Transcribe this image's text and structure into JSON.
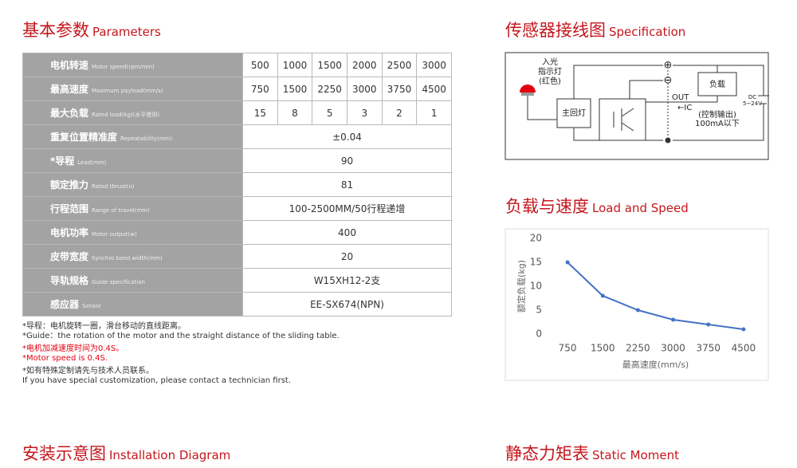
{
  "sections": {
    "parameters": {
      "title_cn": "基本参数",
      "title_en": "Parameters"
    },
    "specification": {
      "title_cn": "传感器接线图",
      "title_en": "Specification"
    },
    "load_speed": {
      "title_cn": "负载与速度",
      "title_en": "Load and Speed"
    },
    "installation": {
      "title_cn": "安装示意图",
      "title_en": "Installation Diagram"
    },
    "static_moment": {
      "title_cn": "静态力矩表",
      "title_en": "Static Moment"
    }
  },
  "table": {
    "rows": [
      {
        "label_cn": "电机转速",
        "label_en": "Motor speed(rpm/min)",
        "cells": [
          "500",
          "1000",
          "1500",
          "2000",
          "2500",
          "3000"
        ]
      },
      {
        "label_cn": "最高速度",
        "label_en": "Maximum payload(mm/s)",
        "cells": [
          "750",
          "1500",
          "2250",
          "3000",
          "3750",
          "4500"
        ]
      },
      {
        "label_cn": "最大负载",
        "label_en": "Rated load(kg)(水平使用)",
        "cells": [
          "15",
          "8",
          "5",
          "3",
          "2",
          "1"
        ]
      },
      {
        "label_cn": "重复位置精准度",
        "label_en": "Repeatability(mm)",
        "cells": [
          "±0.04"
        ]
      },
      {
        "label_cn": "*导程",
        "label_en": "Lead(mm)",
        "cells": [
          "90"
        ]
      },
      {
        "label_cn": "额定推力",
        "label_en": "Rated thrust(n)",
        "cells": [
          "81"
        ]
      },
      {
        "label_cn": "行程范围",
        "label_en": "Range of travel(mm)",
        "cells": [
          "100-2500MM/50行程递增"
        ]
      },
      {
        "label_cn": "电机功率",
        "label_en": "Motor output(w)",
        "cells": [
          "400"
        ]
      },
      {
        "label_cn": "皮带宽度",
        "label_en": "Synchro band width(mm)",
        "cells": [
          "20"
        ]
      },
      {
        "label_cn": "导轨规格",
        "label_en": "Guide specification",
        "cells": [
          "W15XH12-2支"
        ]
      },
      {
        "label_cn": "感应器",
        "label_en": "Sensor",
        "cells": [
          "EE-SX674(NPN)"
        ]
      }
    ]
  },
  "notes": [
    {
      "text": "*导程：电机旋转一圈，滑台移动的直线距离。",
      "color": "#333333"
    },
    {
      "text": "*Guide：the rotation of the motor and the straight distance of the sliding table.",
      "color": "#333333"
    },
    {
      "text": "*电机加减速度时间为0.4S。",
      "color": "#e60012"
    },
    {
      "text": "*Motor speed is 0.4S.",
      "color": "#e60012"
    },
    {
      "text": "*如有特殊定制请先与技术人员联系。",
      "color": "#333333"
    },
    {
      "text": "If you have special customization, please contact a technician first.",
      "color": "#333333"
    }
  ],
  "wiring": {
    "light_1": "入光",
    "light_2": "指示灯",
    "light_3": "(红色)",
    "main_lamp": "主回灯",
    "load": "负载",
    "plus": "⊕",
    "minus": "⊖",
    "out": "OUT",
    "ic": "←IC",
    "control_1": "(控制输出)",
    "control_2": "100mA以下",
    "dc_1": "DC",
    "dc_2": "5~24V"
  },
  "load_speed_chart": {
    "type": "line",
    "color": "#4472c4",
    "categories": [
      "750",
      "1500",
      "2250",
      "3000",
      "3750",
      "4500"
    ],
    "values": [
      15,
      8,
      5,
      3,
      2,
      1
    ],
    "ylim": [
      0,
      20
    ],
    "yticks": [
      0,
      5,
      10,
      15,
      20
    ],
    "x_label": "最高速度(mm/s)",
    "y_label": "额定负载(kg)"
  }
}
